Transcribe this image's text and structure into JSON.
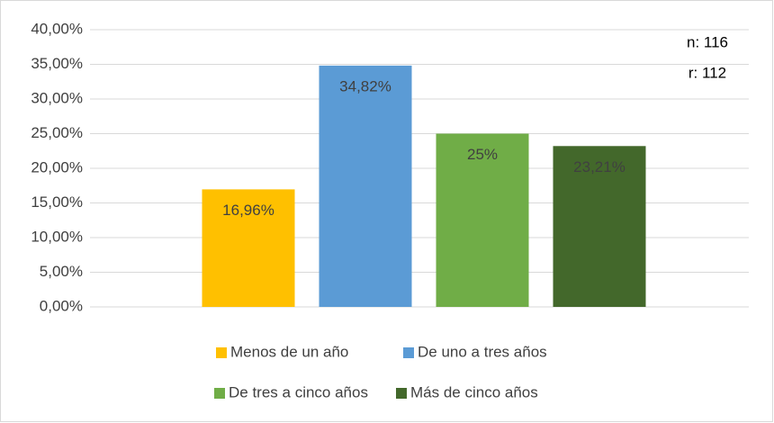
{
  "chart_data": {
    "type": "bar",
    "categories": [
      null
    ],
    "series": [
      {
        "name": "Menos de un año",
        "color": "#ffc000",
        "values": [
          16.96
        ],
        "value_labels": [
          "16,96%"
        ]
      },
      {
        "name": "De uno a tres años",
        "color": "#5b9bd5",
        "values": [
          34.82
        ],
        "value_labels": [
          "34,82%"
        ]
      },
      {
        "name": "De tres a cinco años",
        "color": "#70ad47",
        "values": [
          25
        ],
        "value_labels": [
          "25%"
        ]
      },
      {
        "name": "Más de cinco años",
        "color": "#43682b",
        "values": [
          23.21
        ],
        "value_labels": [
          "23,21%"
        ]
      }
    ],
    "ylim": [
      0,
      40
    ],
    "yticks": [
      {
        "value": 0,
        "label": "0,00%"
      },
      {
        "value": 5,
        "label": "5,00%"
      },
      {
        "value": 10,
        "label": "10,00%"
      },
      {
        "value": 15,
        "label": "15,00%"
      },
      {
        "value": 20,
        "label": "20,00%"
      },
      {
        "value": 25,
        "label": "25,00%"
      },
      {
        "value": 30,
        "label": "30,00%"
      },
      {
        "value": 35,
        "label": "35,00%"
      },
      {
        "value": 40,
        "label": "40,00%"
      }
    ],
    "grid": true,
    "annotations": [
      "n: 116",
      "r: 112"
    ],
    "legend": "bottom"
  }
}
